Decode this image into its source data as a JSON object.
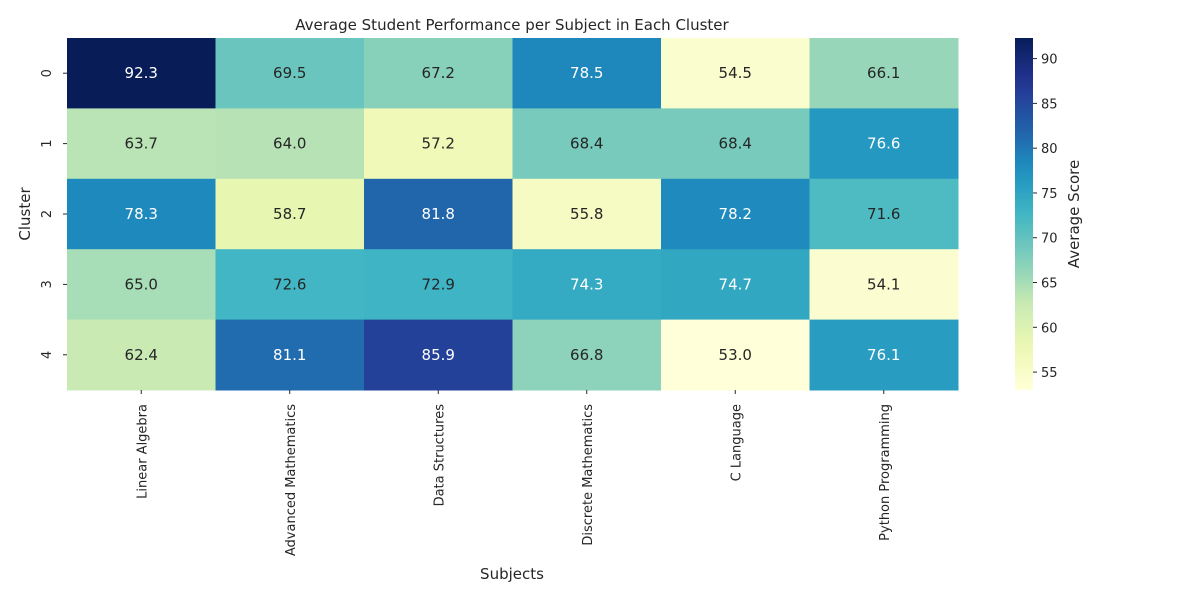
{
  "chart_data": {
    "type": "heatmap",
    "title": "Average Student Performance per Subject in Each Cluster",
    "xlabel": "Subjects",
    "ylabel": "Cluster",
    "x_categories": [
      "Linear Algebra",
      "Advanced Mathematics",
      "Data Structures",
      "Discrete Mathematics",
      "C Language",
      "Python Programming"
    ],
    "y_categories": [
      "0",
      "1",
      "2",
      "3",
      "4"
    ],
    "values": [
      [
        92.3,
        69.5,
        67.2,
        78.5,
        54.5,
        66.1
      ],
      [
        63.7,
        64.0,
        57.2,
        68.4,
        68.4,
        76.6
      ],
      [
        78.3,
        58.7,
        81.8,
        55.8,
        78.2,
        71.6
      ],
      [
        65.0,
        72.6,
        72.9,
        74.3,
        74.7,
        54.1
      ],
      [
        62.4,
        81.1,
        85.9,
        66.8,
        53.0,
        76.1
      ]
    ],
    "colorbar": {
      "label": "Average Score",
      "min": 53.0,
      "max": 92.3,
      "ticks": [
        55,
        60,
        65,
        70,
        75,
        80,
        85,
        90
      ]
    },
    "colormap": "YlGnBu",
    "grid": false
  }
}
